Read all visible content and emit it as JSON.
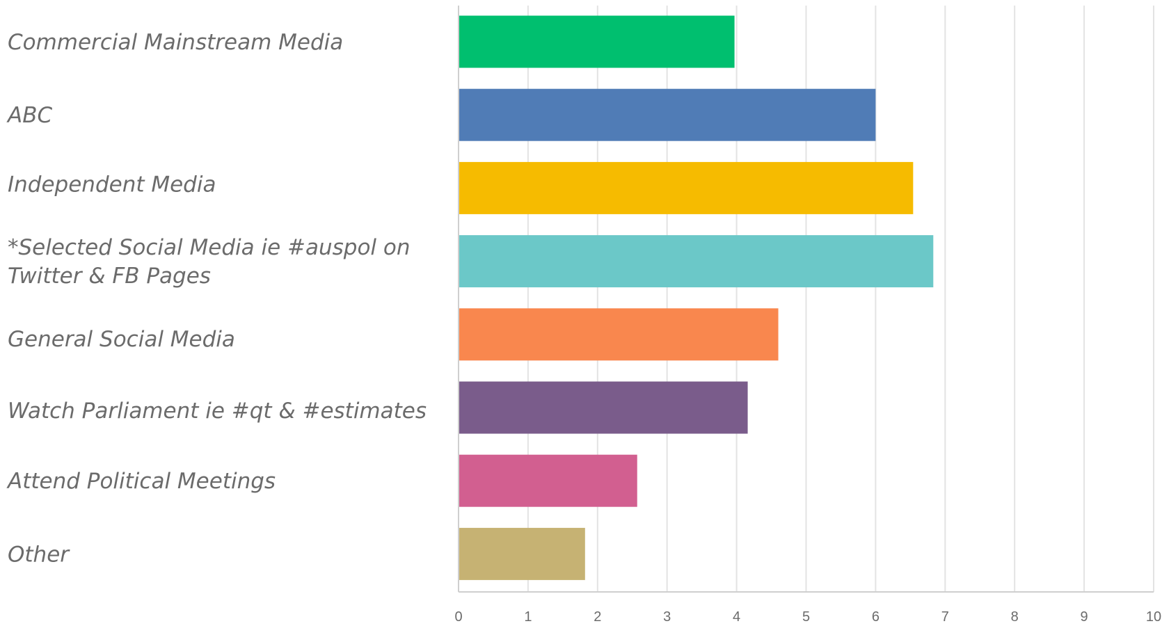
{
  "chart_data": {
    "type": "bar",
    "orientation": "horizontal",
    "categories": [
      "Commercial Mainstream Media",
      "ABC",
      "Independent Media",
      "*Selected Social Media ie #auspol on Twitter & FB Pages",
      "General Social Media",
      "Watch Parliament ie #qt & #estimates",
      "Attend Political Meetings",
      "Other"
    ],
    "category_lines": [
      [
        "Commercial Mainstream Media"
      ],
      [
        "ABC"
      ],
      [
        "Independent Media"
      ],
      [
        "*Selected Social Media ie #auspol on",
        "Twitter & FB Pages"
      ],
      [
        "General Social Media"
      ],
      [
        "Watch Parliament ie #qt & #estimates"
      ],
      [
        "Attend Political Meetings"
      ],
      [
        "Other"
      ]
    ],
    "values": [
      3.97,
      6.0,
      6.54,
      6.83,
      4.6,
      4.16,
      2.57,
      1.82
    ],
    "colors": [
      "#00BF6F",
      "#507CB6",
      "#F6BB00",
      "#6BC8C8",
      "#F9874E",
      "#7A5C8B",
      "#D25F90",
      "#C6B273"
    ],
    "xlim": [
      0,
      10
    ],
    "x_ticks": [
      "0",
      "1",
      "2",
      "3",
      "4",
      "5",
      "6",
      "7",
      "8",
      "9",
      "10"
    ],
    "title": "",
    "xlabel": "",
    "ylabel": "",
    "grid": true,
    "legend": "none"
  }
}
